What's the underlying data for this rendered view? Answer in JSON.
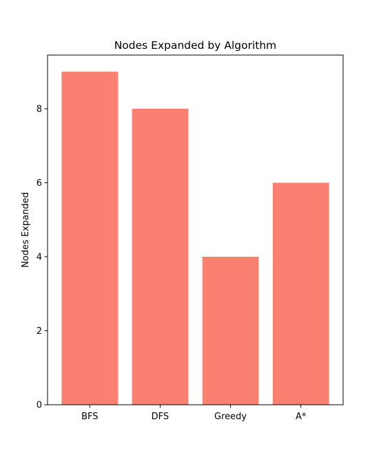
{
  "chart_data": {
    "type": "bar",
    "title": "Nodes Expanded by Algorithm",
    "xlabel": "",
    "ylabel": "Nodes Expanded",
    "categories": [
      "BFS",
      "DFS",
      "Greedy",
      "A*"
    ],
    "values": [
      9,
      8,
      4,
      6
    ],
    "ylim": [
      0,
      9.45
    ],
    "yticks": [
      0,
      2,
      4,
      6,
      8
    ],
    "bar_color": "#fa8072",
    "grid": false,
    "legend": "none"
  }
}
